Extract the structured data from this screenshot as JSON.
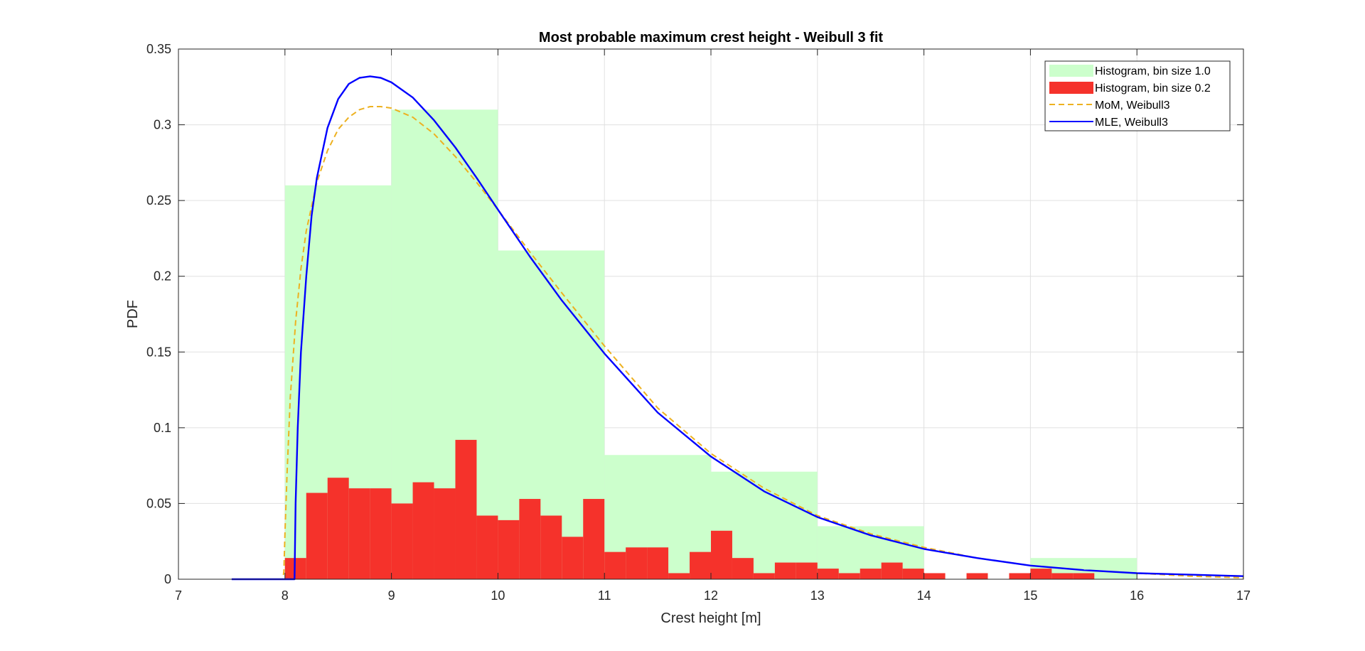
{
  "chart_data": {
    "type": "bar",
    "title": "Most probable maximum crest height - Weibull 3 fit",
    "xlabel": "Crest height [m]",
    "ylabel": "PDF",
    "xlim": [
      7,
      17
    ],
    "ylim": [
      0,
      0.35
    ],
    "xticks": [
      "7",
      "8",
      "9",
      "10",
      "11",
      "12",
      "13",
      "14",
      "15",
      "16",
      "17"
    ],
    "yticks": [
      "0",
      "0.05",
      "0.1",
      "0.15",
      "0.2",
      "0.25",
      "0.3",
      "0.35"
    ],
    "grid": true,
    "legend_position": "top-right",
    "series": [
      {
        "name": "Histogram, bin size 1.0",
        "kind": "histogram",
        "color": "#ccffcc",
        "bin_edges": [
          8,
          9,
          10,
          11,
          12,
          13,
          14,
          15,
          16
        ],
        "values": [
          0.26,
          0.31,
          0.217,
          0.082,
          0.071,
          0.035,
          0.0,
          0.014
        ]
      },
      {
        "name": "Histogram, bin size 0.2",
        "kind": "histogram",
        "color": "#f5322b",
        "bin_start": 8.0,
        "bin_width": 0.2,
        "values": [
          0.014,
          0.057,
          0.067,
          0.06,
          0.06,
          0.05,
          0.064,
          0.06,
          0.092,
          0.042,
          0.039,
          0.053,
          0.042,
          0.028,
          0.053,
          0.018,
          0.021,
          0.021,
          0.004,
          0.018,
          0.032,
          0.014,
          0.004,
          0.011,
          0.011,
          0.007,
          0.004,
          0.007,
          0.011,
          0.007,
          0.004,
          0.0,
          0.004,
          0.0,
          0.004,
          0.007,
          0.004,
          0.004
        ]
      },
      {
        "name": "MoM, Weibull3",
        "kind": "line",
        "style": "dashed",
        "color": "#edb120",
        "x": [
          7.5,
          7.98,
          7.99,
          8.0,
          8.02,
          8.05,
          8.1,
          8.15,
          8.2,
          8.3,
          8.4,
          8.5,
          8.6,
          8.7,
          8.8,
          8.9,
          9.0,
          9.2,
          9.4,
          9.6,
          9.8,
          10.0,
          10.3,
          10.6,
          11.0,
          11.5,
          12.0,
          12.5,
          13.0,
          13.5,
          14.0,
          14.5,
          15.0,
          15.5,
          16.0,
          16.5,
          17.0
        ],
        "y": [
          0.0,
          0.0,
          0.005,
          0.03,
          0.07,
          0.12,
          0.17,
          0.205,
          0.23,
          0.262,
          0.283,
          0.297,
          0.305,
          0.31,
          0.312,
          0.312,
          0.311,
          0.305,
          0.294,
          0.279,
          0.262,
          0.244,
          0.216,
          0.189,
          0.154,
          0.113,
          0.083,
          0.06,
          0.042,
          0.03,
          0.021,
          0.014,
          0.009,
          0.006,
          0.004,
          0.002,
          0.001
        ]
      },
      {
        "name": "MLE, Weibull3",
        "kind": "line",
        "style": "solid",
        "color": "#0000ff",
        "x": [
          7.5,
          8.09,
          8.1,
          8.12,
          8.15,
          8.2,
          8.25,
          8.3,
          8.4,
          8.5,
          8.6,
          8.7,
          8.8,
          8.9,
          9.0,
          9.2,
          9.4,
          9.6,
          9.8,
          10.0,
          10.3,
          10.6,
          11.0,
          11.5,
          12.0,
          12.5,
          13.0,
          13.5,
          14.0,
          14.5,
          15.0,
          15.5,
          16.0,
          16.5,
          17.0
        ],
        "y": [
          0.0,
          0.0,
          0.05,
          0.1,
          0.15,
          0.2,
          0.24,
          0.265,
          0.298,
          0.317,
          0.327,
          0.331,
          0.332,
          0.331,
          0.328,
          0.318,
          0.303,
          0.285,
          0.265,
          0.244,
          0.213,
          0.184,
          0.149,
          0.11,
          0.081,
          0.058,
          0.041,
          0.029,
          0.02,
          0.014,
          0.009,
          0.006,
          0.004,
          0.003,
          0.002
        ]
      }
    ]
  }
}
